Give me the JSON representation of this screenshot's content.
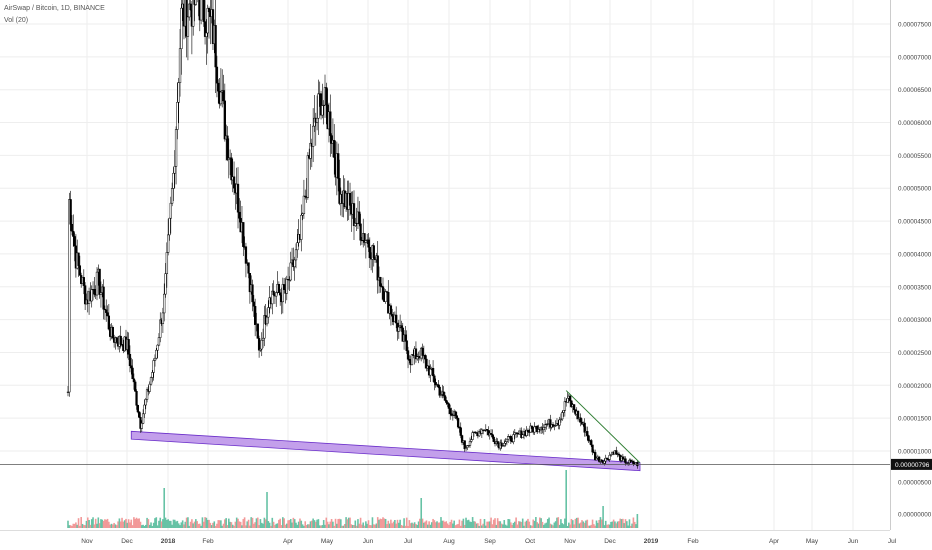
{
  "header": {
    "symbol_line": "AirSwap / Bitcoin, 1D, BINANCE",
    "volume_line": "Vol (20)"
  },
  "colors": {
    "candle": "#000000",
    "trendline": "#2e7d32",
    "channel_fill": "#b98ee8",
    "channel_stroke": "#6a2ec9",
    "volume_up": "#66c2a5",
    "volume_down": "#f29999",
    "price_line": "#555555",
    "price_tag_bg": "#111111",
    "grid": "#eeeeee"
  },
  "chart_data": {
    "type": "candlestick",
    "title": "AirSwap / Bitcoin, 1D, BINANCE",
    "y_axis": {
      "ticks": [
        "0.00007500",
        "0.00007000",
        "0.00006500",
        "0.00006000",
        "0.00005500",
        "0.00005000",
        "0.00004500",
        "0.00004000",
        "0.00003500",
        "0.00003000",
        "0.00002500",
        "0.00002000",
        "0.00001500",
        "0.00001000"
      ],
      "volume_ticks": [
        "0.00000500",
        "0.00000000"
      ],
      "current_price_label": "0.00000796",
      "current_price": 7.96e-06,
      "range": [
        1.7e-06,
        7.82e-05
      ]
    },
    "x_axis": {
      "ticks": [
        "Nov",
        "Dec",
        "2018",
        "Feb",
        "Apr",
        "May",
        "Jun",
        "Jul",
        "Aug",
        "Sep",
        "Oct",
        "Nov",
        "Dec",
        "2019",
        "Feb",
        "Apr",
        "May",
        "Jun",
        "Jul"
      ],
      "bold_ticks": [
        "2018",
        "2019"
      ]
    },
    "series": [
      {
        "values_are": "approximate daily close (BTC), key points, interpolated",
        "points": [
          [
            "2017-10-18",
            1.9e-05
          ],
          [
            "2017-10-19",
            4.8e-05
          ],
          [
            "2017-10-24",
            3.95e-05
          ],
          [
            "2017-11-01",
            3.3e-05
          ],
          [
            "2017-11-10",
            3.6e-05
          ],
          [
            "2017-11-20",
            2.75e-05
          ],
          [
            "2017-12-02",
            2.6e-05
          ],
          [
            "2017-12-12",
            1.4e-05
          ],
          [
            "2017-12-22",
            2.3e-05
          ],
          [
            "2017-12-30",
            3.3e-05
          ],
          [
            "2018-01-06",
            5.2e-05
          ],
          [
            "2018-01-12",
            7.6e-05
          ],
          [
            "2018-01-25",
            7.9e-05
          ],
          [
            "2018-02-05",
            7.4e-05
          ],
          [
            "2018-02-15",
            5.8e-05
          ],
          [
            "2018-02-25",
            4.7e-05
          ],
          [
            "2018-03-05",
            3.6e-05
          ],
          [
            "2018-03-12",
            2.5e-05
          ],
          [
            "2018-03-20",
            3.4e-05
          ],
          [
            "2018-04-01",
            3.4e-05
          ],
          [
            "2018-04-12",
            4.2e-05
          ],
          [
            "2018-04-20",
            5.6e-05
          ],
          [
            "2018-04-28",
            6.4e-05
          ],
          [
            "2018-05-05",
            6e-05
          ],
          [
            "2018-05-12",
            5e-05
          ],
          [
            "2018-05-25",
            4.5e-05
          ],
          [
            "2018-06-05",
            4.1e-05
          ],
          [
            "2018-06-15",
            3.4e-05
          ],
          [
            "2018-06-25",
            2.9e-05
          ],
          [
            "2018-07-05",
            2.4e-05
          ],
          [
            "2018-07-12",
            2.5e-05
          ],
          [
            "2018-07-20",
            2.2e-05
          ],
          [
            "2018-07-30",
            1.8e-05
          ],
          [
            "2018-08-08",
            1.5e-05
          ],
          [
            "2018-08-15",
            1.05e-05
          ],
          [
            "2018-08-22",
            1.25e-05
          ],
          [
            "2018-08-30",
            1.35e-05
          ],
          [
            "2018-09-10",
            1.1e-05
          ],
          [
            "2018-09-20",
            1.2e-05
          ],
          [
            "2018-10-01",
            1.3e-05
          ],
          [
            "2018-10-15",
            1.4e-05
          ],
          [
            "2018-10-25",
            1.45e-05
          ],
          [
            "2018-11-01",
            1.8e-05
          ],
          [
            "2018-11-07",
            1.6e-05
          ],
          [
            "2018-11-15",
            1.3e-05
          ],
          [
            "2018-11-22",
            9e-06
          ],
          [
            "2018-11-29",
            8.5e-06
          ],
          [
            "2018-12-06",
            1e-05
          ],
          [
            "2018-12-13",
            8.5e-06
          ],
          [
            "2018-12-24",
            8e-06
          ]
        ]
      }
    ],
    "annotations": [
      {
        "type": "channel",
        "desc": "purple descending support band",
        "from": [
          "2017-12-05",
          1.24e-05
        ],
        "to": [
          "2018-12-26",
          7.6e-06
        ],
        "width": 1.2e-06
      },
      {
        "type": "trendline",
        "desc": "green descending resistance",
        "from": [
          "2018-10-31",
          1.92e-05
        ],
        "to": [
          "2018-12-26",
          8.2e-06
        ]
      }
    ],
    "grid": true,
    "legend": "top-left"
  }
}
